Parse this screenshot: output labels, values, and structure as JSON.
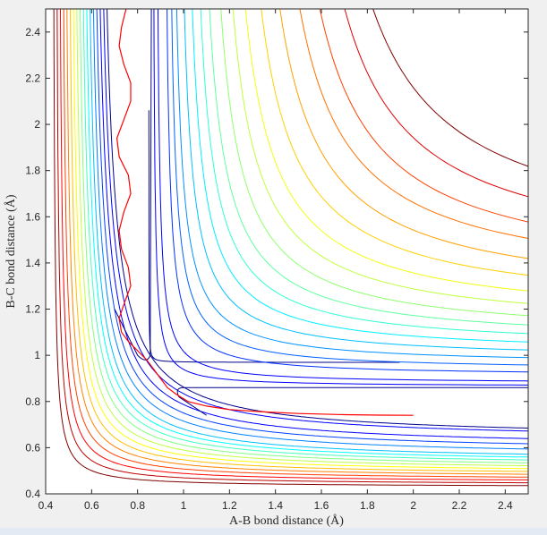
{
  "chart_data": {
    "type": "contour",
    "title": "",
    "xlabel": "A-B bond distance (Å)",
    "ylabel": "B-C bond distance (Å)",
    "xlim": [
      0.4,
      2.5
    ],
    "ylim": [
      0.4,
      2.5
    ],
    "xticks": [
      "0.4",
      "0.6",
      "0.8",
      "1",
      "1.2",
      "1.4",
      "1.6",
      "1.8",
      "2",
      "2.2",
      "2.4"
    ],
    "yticks": [
      "0.4",
      "0.6",
      "0.8",
      "1",
      "1.2",
      "1.4",
      "1.6",
      "1.8",
      "2",
      "2.2",
      "2.4"
    ],
    "grid": false,
    "colormap": [
      "#00008f",
      "#0000ff",
      "#0080ff",
      "#00ffff",
      "#80ff80",
      "#ffff00",
      "#ff8000",
      "#ff0000",
      "#800000"
    ],
    "contour_levels": [
      {
        "asymptote": 0.64,
        "color": "#00008f"
      },
      {
        "asymptote": 0.63,
        "color": "#0000ff"
      },
      {
        "asymptote": 0.6,
        "color": "#0000ff"
      },
      {
        "asymptote": 0.58,
        "color": "#0040ff"
      },
      {
        "asymptote": 0.56,
        "color": "#0080ff"
      },
      {
        "asymptote": 0.54,
        "color": "#00bfff"
      },
      {
        "asymptote": 0.53,
        "color": "#00ffff"
      },
      {
        "asymptote": 0.52,
        "color": "#40ffbf"
      },
      {
        "asymptote": 0.51,
        "color": "#80ff80"
      },
      {
        "asymptote": 0.5,
        "color": "#bfff40"
      },
      {
        "asymptote": 0.49,
        "color": "#ffff00"
      },
      {
        "asymptote": 0.48,
        "color": "#ffbf00"
      },
      {
        "asymptote": 0.47,
        "color": "#ff8000"
      },
      {
        "asymptote": 0.46,
        "color": "#ff4000"
      },
      {
        "asymptote": 0.45,
        "color": "#ff0000"
      },
      {
        "asymptote": 0.44,
        "color": "#bf0000"
      },
      {
        "asymptote": 0.43,
        "color": "#800000"
      }
    ],
    "l_contours": [
      {
        "xa": 0.86,
        "ya": 0.98,
        "r": 0.02,
        "color": "#00008f"
      },
      {
        "xa": 0.92,
        "ya": 0.92,
        "r": 0.1,
        "color": "#0000ff"
      },
      {
        "xa": 0.95,
        "ya": 0.95,
        "r": 0.13,
        "color": "#0000ff"
      },
      {
        "xa": 1.0,
        "ya": 1.0,
        "r": 0.16,
        "color": "#0030ff"
      },
      {
        "xa": 1.03,
        "ya": 1.04,
        "r": 0.19,
        "color": "#0060ff"
      },
      {
        "xa": 1.06,
        "ya": 1.08,
        "r": 0.22,
        "color": "#0090ff"
      },
      {
        "xa": 1.1,
        "ya": 1.12,
        "r": 0.25,
        "color": "#00c0ff"
      },
      {
        "xa": 1.14,
        "ya": 1.16,
        "r": 0.28,
        "color": "#00efff"
      },
      {
        "xa": 1.18,
        "ya": 1.2,
        "r": 0.31,
        "color": "#30ffd0"
      },
      {
        "xa": 1.22,
        "ya": 1.24,
        "r": 0.34,
        "color": "#60ffa0"
      },
      {
        "xa": 1.27,
        "ya": 1.28,
        "r": 0.37,
        "color": "#90ff70"
      },
      {
        "xa": 1.32,
        "ya": 1.33,
        "r": 0.4,
        "color": "#c0ff40"
      },
      {
        "xa": 1.37,
        "ya": 1.38,
        "r": 0.43,
        "color": "#f0ff10"
      },
      {
        "xa": 1.43,
        "ya": 1.44,
        "r": 0.46,
        "color": "#ffd000"
      },
      {
        "xa": 1.5,
        "ya": 1.5,
        "r": 0.49,
        "color": "#ffa000"
      },
      {
        "xa": 1.57,
        "ya": 1.57,
        "r": 0.52,
        "color": "#ff7000"
      },
      {
        "xa": 1.64,
        "ya": 1.62,
        "r": 0.55,
        "color": "#ff4000"
      },
      {
        "xa": 1.72,
        "ya": 1.7,
        "r": 0.58,
        "color": "#e00000"
      },
      {
        "xa": 1.8,
        "ya": 1.79,
        "r": 0.62,
        "color": "#800000"
      }
    ],
    "trajectory": {
      "color": "#ff0000",
      "x": [
        0.75,
        0.73,
        0.72,
        0.74,
        0.77,
        0.77,
        0.74,
        0.71,
        0.72,
        0.76,
        0.77,
        0.74,
        0.72,
        0.73,
        0.76,
        0.77,
        0.74,
        0.72,
        0.73,
        0.76,
        0.8,
        0.84,
        0.87,
        0.9,
        0.93,
        0.97,
        1.02,
        1.1,
        1.2,
        1.35,
        1.5,
        1.7,
        1.85,
        2.0
      ],
      "y": [
        2.5,
        2.42,
        2.34,
        2.26,
        2.18,
        2.1,
        2.02,
        1.94,
        1.86,
        1.78,
        1.7,
        1.62,
        1.54,
        1.46,
        1.38,
        1.3,
        1.22,
        1.16,
        1.1,
        1.06,
        1.02,
        0.98,
        0.94,
        0.9,
        0.86,
        0.83,
        0.8,
        0.78,
        0.765,
        0.755,
        0.748,
        0.743,
        0.741,
        0.74
      ]
    }
  }
}
